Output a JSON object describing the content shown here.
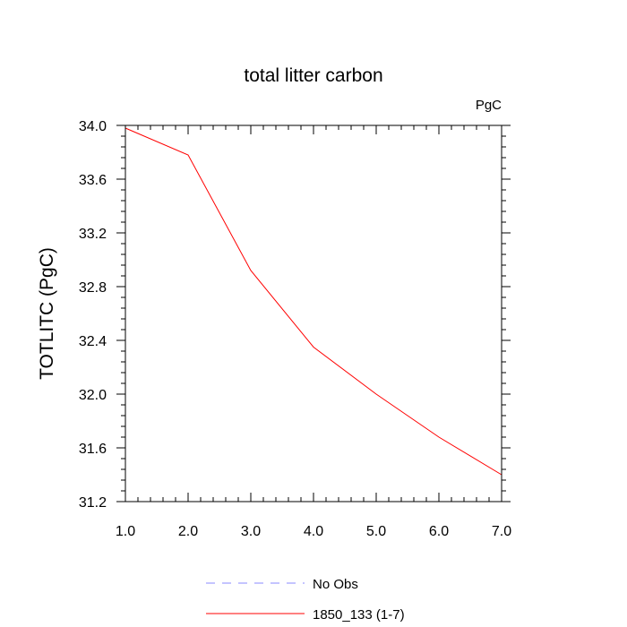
{
  "chart_data": {
    "type": "line",
    "title": "total litter carbon",
    "units_label": "PgC",
    "xlabel": "",
    "ylabel": "TOTLITC  (PgC)",
    "xlim": [
      1.0,
      7.0
    ],
    "ylim": [
      31.2,
      34.0
    ],
    "x_ticks": [
      "1.0",
      "2.0",
      "3.0",
      "4.0",
      "5.0",
      "6.0",
      "7.0"
    ],
    "y_ticks": [
      "31.2",
      "31.6",
      "32.0",
      "32.4",
      "32.8",
      "33.2",
      "33.6",
      "34.0"
    ],
    "series": [
      {
        "name": "1850_133 (1-7)",
        "color": "#ff0000",
        "style": "solid",
        "x": [
          1,
          2,
          3,
          4,
          5,
          6,
          7
        ],
        "values": [
          33.98,
          33.78,
          32.92,
          32.35,
          32.0,
          31.68,
          31.4
        ]
      }
    ],
    "legend": [
      {
        "label": "No Obs",
        "color": "#8a8aff",
        "style": "dashed"
      },
      {
        "label": "1850_133 (1-7)",
        "color": "#ff0000",
        "style": "solid"
      }
    ],
    "legend_position": "bottom-center"
  }
}
